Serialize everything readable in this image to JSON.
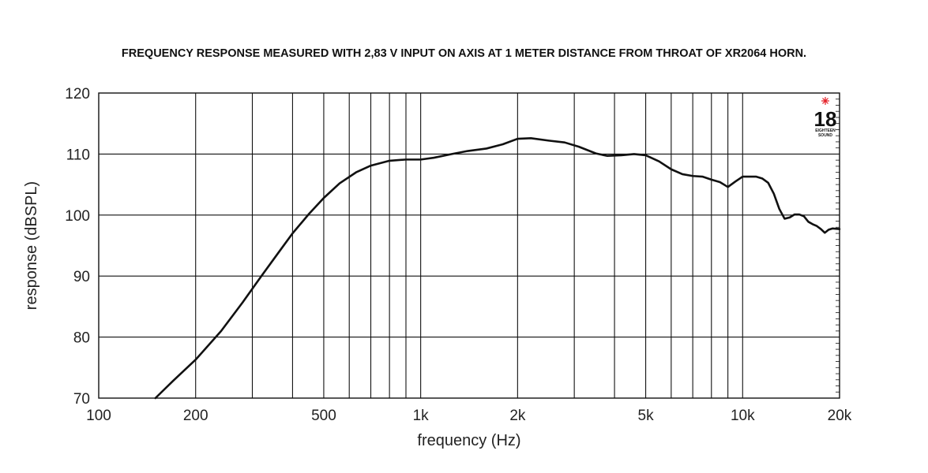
{
  "chart_data": {
    "type": "line",
    "title": "FREQUENCY RESPONSE MEASURED WITH 2,83 V INPUT ON AXIS AT 1 METER DISTANCE FROM THROAT OF XR2064 HORN.",
    "xlabel": "frequency (Hz)",
    "ylabel": "response (dBSPL)",
    "xscale": "log",
    "xlim": [
      100,
      20000
    ],
    "ylim": [
      70,
      120
    ],
    "grid": true,
    "x_ticks": [
      100,
      200,
      500,
      1000,
      2000,
      5000,
      10000,
      20000
    ],
    "x_tick_labels": [
      "100",
      "200",
      "500",
      "1k",
      "2k",
      "5k",
      "10k",
      "20k"
    ],
    "y_ticks": [
      70,
      80,
      90,
      100,
      110,
      120
    ],
    "y_tick_labels": [
      "70",
      "80",
      "90",
      "100",
      "110",
      "120"
    ],
    "series": [
      {
        "color": "#111111",
        "x": [
          150,
          170,
          200,
          240,
          280,
          320,
          360,
          400,
          450,
          500,
          560,
          630,
          700,
          800,
          900,
          1000,
          1100,
          1250,
          1400,
          1600,
          1800,
          2000,
          2200,
          2500,
          2800,
          3100,
          3500,
          3800,
          4200,
          4600,
          5000,
          5500,
          6000,
          6500,
          7000,
          7500,
          8000,
          8500,
          9000,
          9500,
          10000,
          10500,
          11000,
          11500,
          12000,
          12500,
          13000,
          13500,
          14000,
          14500,
          15000,
          15500,
          16000,
          16500,
          17000,
          17500,
          18000,
          18500,
          19000,
          20000
        ],
        "y": [
          70,
          72.8,
          76.3,
          81,
          85.7,
          90,
          93.7,
          97,
          100.2,
          102.8,
          105.2,
          107,
          108.1,
          108.9,
          109.1,
          109.1,
          109.4,
          110,
          110.5,
          110.9,
          111.6,
          112.5,
          112.6,
          112.2,
          111.9,
          111.2,
          110.1,
          109.7,
          109.8,
          110,
          109.8,
          108.8,
          107.5,
          106.7,
          106.4,
          106.3,
          105.8,
          105.4,
          104.6,
          105.5,
          106.3,
          106.3,
          106.3,
          106,
          105.3,
          103.5,
          101,
          99.4,
          99.6,
          100.1,
          100.1,
          99.8,
          98.9,
          98.5,
          98.2,
          97.7,
          97.1,
          97.6,
          97.8,
          97.7
        ]
      }
    ]
  },
  "logo": {
    "number": "18",
    "sub_line1": "EIGHTEEN",
    "sub_line2": "SOUND",
    "accent_color": "#e41e26"
  }
}
